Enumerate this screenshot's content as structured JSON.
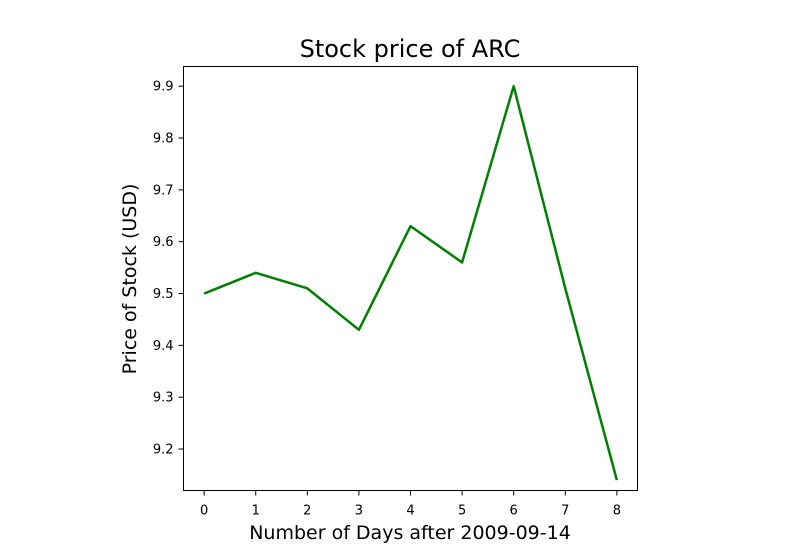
{
  "chart_data": {
    "type": "line",
    "title": "Stock price of ARC",
    "xlabel": "Number of Days after 2009-09-14",
    "ylabel": "Price of Stock (USD)",
    "x": [
      0,
      1,
      2,
      3,
      4,
      5,
      6,
      7,
      8
    ],
    "series": [
      {
        "values": [
          9.5,
          9.54,
          9.51,
          9.43,
          9.63,
          9.56,
          9.9,
          9.51,
          9.14
        ],
        "color": "#008000"
      }
    ],
    "xlim": [
      -0.4,
      8.4
    ],
    "ylim": [
      9.12,
      9.938
    ],
    "xticks": [
      0,
      1,
      2,
      3,
      4,
      5,
      6,
      7,
      8
    ],
    "yticks": [
      9.2,
      9.3,
      9.4,
      9.5,
      9.6,
      9.7,
      9.8,
      9.9
    ],
    "grid": false,
    "legend": "none"
  }
}
